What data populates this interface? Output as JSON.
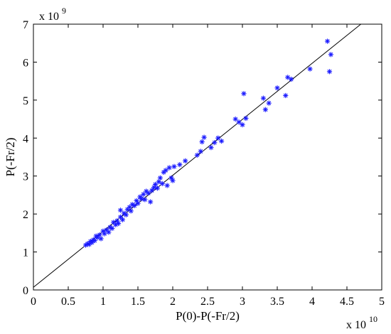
{
  "chart_data": {
    "type": "scatter",
    "title": "",
    "xlabel": "P(0)-P(-Fr/2)",
    "ylabel": "P(-Fr/2)",
    "x_exponent_label": {
      "base": "x 10",
      "power": "10"
    },
    "y_exponent_label": {
      "base": "x 10",
      "power": "9"
    },
    "x_scale": 10000000000.0,
    "y_scale": 1000000000.0,
    "xlim": [
      0,
      5
    ],
    "ylim": [
      0,
      7
    ],
    "xticks": [
      "0",
      "0.5",
      "1",
      "1.5",
      "2",
      "2.5",
      "3",
      "3.5",
      "4",
      "4.5",
      "5"
    ],
    "yticks": [
      "0",
      "1",
      "2",
      "3",
      "4",
      "5",
      "6",
      "7"
    ],
    "grid": false,
    "marker_color": "#0000ff",
    "line_color": "#000000",
    "fit_line": {
      "x": [
        0,
        4.7
      ],
      "y": [
        0.07,
        7.0
      ]
    },
    "series": [
      {
        "marker": "asterisk",
        "points": [
          [
            0.75,
            1.18
          ],
          [
            0.78,
            1.22
          ],
          [
            0.8,
            1.2
          ],
          [
            0.82,
            1.28
          ],
          [
            0.84,
            1.25
          ],
          [
            0.86,
            1.32
          ],
          [
            0.88,
            1.3
          ],
          [
            0.9,
            1.42
          ],
          [
            0.92,
            1.38
          ],
          [
            0.95,
            1.45
          ],
          [
            0.97,
            1.35
          ],
          [
            1.0,
            1.55
          ],
          [
            1.02,
            1.48
          ],
          [
            1.05,
            1.58
          ],
          [
            1.08,
            1.52
          ],
          [
            1.1,
            1.65
          ],
          [
            1.13,
            1.62
          ],
          [
            1.15,
            1.78
          ],
          [
            1.18,
            1.72
          ],
          [
            1.2,
            1.82
          ],
          [
            1.22,
            1.75
          ],
          [
            1.25,
            1.92
          ],
          [
            1.25,
            2.1
          ],
          [
            1.28,
            1.85
          ],
          [
            1.3,
            2.02
          ],
          [
            1.33,
            1.98
          ],
          [
            1.35,
            2.12
          ],
          [
            1.38,
            2.18
          ],
          [
            1.4,
            2.08
          ],
          [
            1.42,
            2.25
          ],
          [
            1.45,
            2.22
          ],
          [
            1.48,
            2.35
          ],
          [
            1.5,
            2.28
          ],
          [
            1.53,
            2.45
          ],
          [
            1.55,
            2.4
          ],
          [
            1.58,
            2.52
          ],
          [
            1.6,
            2.38
          ],
          [
            1.62,
            2.6
          ],
          [
            1.65,
            2.55
          ],
          [
            1.68,
            2.32
          ],
          [
            1.7,
            2.62
          ],
          [
            1.73,
            2.7
          ],
          [
            1.75,
            2.78
          ],
          [
            1.78,
            2.68
          ],
          [
            1.8,
            2.85
          ],
          [
            1.82,
            2.95
          ],
          [
            1.85,
            2.8
          ],
          [
            1.87,
            3.1
          ],
          [
            1.9,
            3.15
          ],
          [
            1.92,
            2.75
          ],
          [
            1.95,
            3.22
          ],
          [
            1.98,
            2.95
          ],
          [
            2.0,
            2.88
          ],
          [
            2.02,
            3.25
          ],
          [
            2.1,
            3.3
          ],
          [
            2.18,
            3.4
          ],
          [
            2.35,
            3.55
          ],
          [
            2.4,
            3.65
          ],
          [
            2.42,
            3.9
          ],
          [
            2.45,
            4.02
          ],
          [
            2.55,
            3.75
          ],
          [
            2.6,
            3.88
          ],
          [
            2.65,
            4.0
          ],
          [
            2.7,
            3.92
          ],
          [
            2.9,
            4.5
          ],
          [
            2.95,
            4.42
          ],
          [
            3.0,
            4.35
          ],
          [
            3.02,
            5.17
          ],
          [
            3.05,
            4.52
          ],
          [
            3.3,
            5.05
          ],
          [
            3.33,
            4.75
          ],
          [
            3.38,
            4.92
          ],
          [
            3.5,
            5.32
          ],
          [
            3.62,
            5.12
          ],
          [
            3.65,
            5.6
          ],
          [
            3.7,
            5.55
          ],
          [
            3.97,
            5.82
          ],
          [
            4.22,
            6.55
          ],
          [
            4.25,
            5.75
          ],
          [
            4.27,
            6.2
          ]
        ]
      }
    ]
  }
}
